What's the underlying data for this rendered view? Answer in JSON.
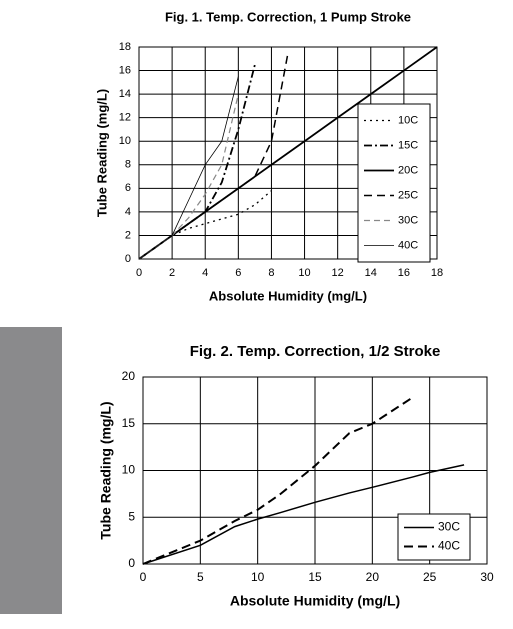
{
  "chart_data": [
    {
      "type": "line",
      "title": "Fig. 1. Temp. Correction, 1 Pump Stroke",
      "x_label": "Absolute Humidity (mg/L)",
      "y_label": "Tube Reading (mg/L)",
      "x": [
        0,
        1,
        2,
        3,
        4,
        5,
        6,
        7,
        8,
        9,
        10,
        12,
        14,
        16,
        18
      ],
      "series": [
        {
          "name": "10C",
          "color": "#000000",
          "dash": "2,4",
          "width": 1.3,
          "values": [
            0,
            1,
            2,
            2.6,
            3,
            3.4,
            3.8,
            4.6,
            5.8,
            null,
            null,
            null,
            null,
            null,
            null
          ]
        },
        {
          "name": "15C",
          "color": "#000000",
          "dash": "8,3,2,3",
          "width": 1.8,
          "values": [
            0,
            1,
            2,
            3,
            4,
            6.5,
            11,
            16.5,
            null,
            null,
            null,
            null,
            null,
            null,
            null
          ]
        },
        {
          "name": "20C",
          "color": "#000000",
          "dash": "none",
          "width": 1.8,
          "values": [
            0,
            1,
            2,
            3,
            4,
            5,
            6,
            7,
            8,
            9,
            10,
            12,
            14,
            16,
            18
          ]
        },
        {
          "name": "25C",
          "color": "#000000",
          "dash": "8,5",
          "width": 1.5,
          "values": [
            0,
            1,
            2,
            3,
            4,
            5,
            6,
            7,
            10,
            17.5,
            null,
            null,
            null,
            null,
            null
          ]
        },
        {
          "name": "30C",
          "color": "#888888",
          "dash": "6,4",
          "width": 1.2,
          "values": [
            0,
            1,
            2,
            3.5,
            5.5,
            8,
            14,
            null,
            null,
            null,
            null,
            null,
            null,
            null,
            null
          ]
        },
        {
          "name": "40C",
          "color": "#000000",
          "dash": "none",
          "width": 0.8,
          "values": [
            0,
            1,
            2,
            5,
            8,
            10,
            15.5,
            null,
            null,
            null,
            null,
            null,
            null,
            null,
            null
          ]
        }
      ],
      "xlim": [
        0,
        18
      ],
      "xticks": [
        0,
        2,
        4,
        6,
        8,
        10,
        12,
        14,
        16,
        18
      ],
      "ylim": [
        0,
        18
      ],
      "yticks": [
        0,
        2,
        4,
        6,
        8,
        10,
        12,
        14,
        16,
        18
      ],
      "grid": true,
      "legend": "right"
    },
    {
      "type": "line",
      "title": "Fig. 2. Temp. Correction, 1/2 Stroke",
      "x_label": "Absolute Humidity (mg/L)",
      "y_label": "Tube Reading (mg/L)",
      "x": [
        0,
        5,
        8,
        10,
        12,
        15,
        18,
        20,
        23.5,
        25,
        28
      ],
      "series": [
        {
          "name": "30C",
          "color": "#000000",
          "dash": "none",
          "width": 1.5,
          "values": [
            0,
            2,
            4,
            4.8,
            5.5,
            6.6,
            7.6,
            8.2,
            9.3,
            9.8,
            10.6
          ]
        },
        {
          "name": "40C",
          "color": "#000000",
          "dash": "9,5",
          "width": 2,
          "values": [
            0,
            2.5,
            4.6,
            5.8,
            7.5,
            10.5,
            14,
            15,
            17.8,
            null,
            null
          ]
        }
      ],
      "xlim": [
        0,
        30
      ],
      "xticks": [
        0,
        5,
        10,
        15,
        20,
        25,
        30
      ],
      "ylim": [
        0,
        20
      ],
      "yticks": [
        0,
        5,
        10,
        15,
        20
      ],
      "grid": true,
      "legend": "lower right"
    }
  ]
}
